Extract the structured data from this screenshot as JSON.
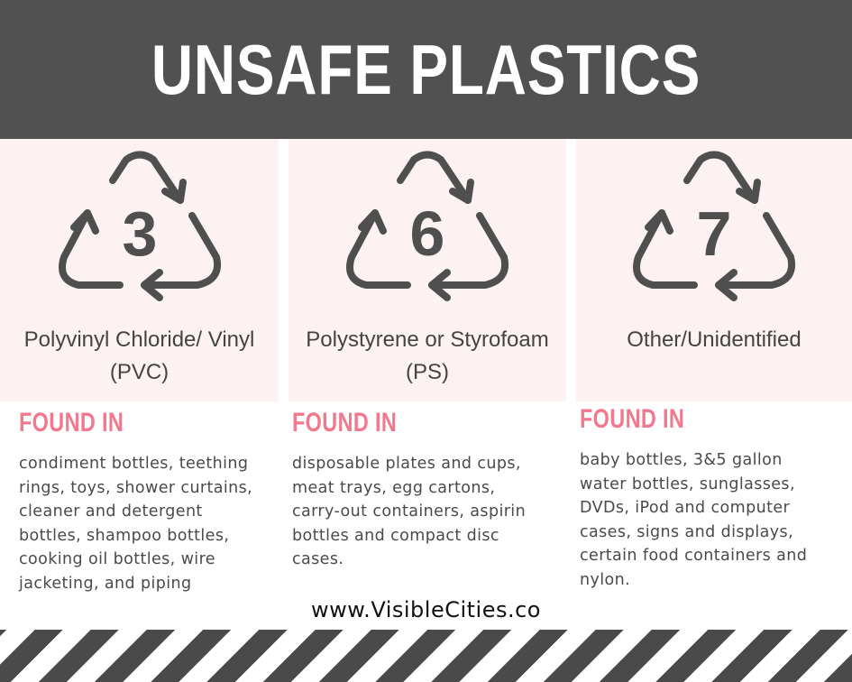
{
  "title": "UNSAFE PLASTICS",
  "found_label": "FOUND IN",
  "website": "www.VisibleCities.co",
  "colors": {
    "header": "#515151",
    "card": "#fdf2f2",
    "accent": "#f2788e",
    "stripes": "#4a4a4a"
  },
  "plastics": [
    {
      "code": "3",
      "icon": "recycle-triangle-icon",
      "name_line1": "Polyvinyl Chloride/ Vinyl",
      "name_line2": "(PVC)",
      "found_lines": [
        "condiment bottles, teething",
        "rings, toys, shower curtains,",
        "cleaner and detergent",
        "bottles, shampoo bottles,",
        "cooking oil bottles, wire",
        "jacketing, and piping"
      ]
    },
    {
      "code": "6",
      "icon": "recycle-triangle-icon",
      "name_line1": "Polystyrene or Styrofoam",
      "name_line2": "(PS)",
      "found_lines": [
        "disposable plates and cups,",
        "meat trays, egg cartons,",
        "carry-out containers, aspirin",
        "bottles and compact disc",
        "cases."
      ]
    },
    {
      "code": "7",
      "icon": "recycle-triangle-icon",
      "name_line1": "Other/Unidentified",
      "name_line2": "",
      "found_lines": [
        "baby bottles, 3&5 gallon",
        "water bottles, sunglasses,",
        "DVDs, iPod and computer",
        "cases, signs and displays,",
        "certain food containers and",
        "nylon."
      ]
    }
  ]
}
